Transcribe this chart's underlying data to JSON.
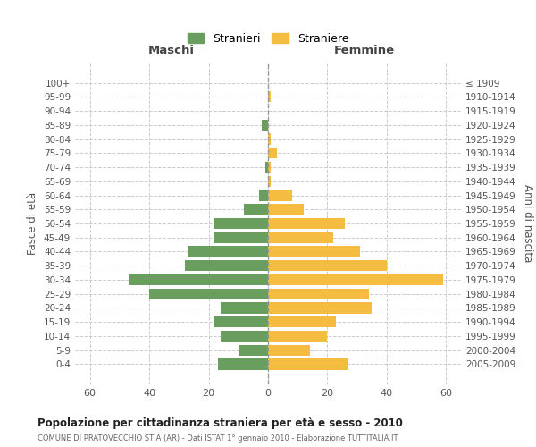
{
  "age_groups": [
    "100+",
    "95-99",
    "90-94",
    "85-89",
    "80-84",
    "75-79",
    "70-74",
    "65-69",
    "60-64",
    "55-59",
    "50-54",
    "45-49",
    "40-44",
    "35-39",
    "30-34",
    "25-29",
    "20-24",
    "15-19",
    "10-14",
    "5-9",
    "0-4"
  ],
  "birth_years": [
    "≤ 1909",
    "1910-1914",
    "1915-1919",
    "1920-1924",
    "1925-1929",
    "1930-1934",
    "1935-1939",
    "1940-1944",
    "1945-1949",
    "1950-1954",
    "1955-1959",
    "1960-1964",
    "1965-1969",
    "1970-1974",
    "1975-1979",
    "1980-1984",
    "1985-1989",
    "1990-1994",
    "1995-1999",
    "2000-2004",
    "2005-2009"
  ],
  "maschi": [
    0,
    0,
    0,
    2,
    0,
    0,
    1,
    0,
    3,
    8,
    18,
    18,
    27,
    28,
    47,
    40,
    16,
    18,
    16,
    10,
    17
  ],
  "femmine": [
    0,
    1,
    0,
    0,
    1,
    3,
    1,
    1,
    8,
    12,
    26,
    22,
    31,
    40,
    59,
    34,
    35,
    23,
    20,
    14,
    27
  ],
  "male_color": "#6a9e5e",
  "female_color": "#f5bc42",
  "background_color": "#ffffff",
  "grid_color": "#cccccc",
  "dashed_line_color": "#999999",
  "xlim": 65,
  "title": "Popolazione per cittadinanza straniera per età e sesso - 2010",
  "subtitle": "COMUNE DI PRATOVECCHIO STIA (AR) - Dati ISTAT 1° gennaio 2010 - Elaborazione TUTTITALIA.IT",
  "xlabel_left": "Maschi",
  "xlabel_right": "Femmine",
  "ylabel_left": "Fasce di età",
  "ylabel_right": "Anni di nascita",
  "legend_stranieri": "Stranieri",
  "legend_straniere": "Straniere"
}
